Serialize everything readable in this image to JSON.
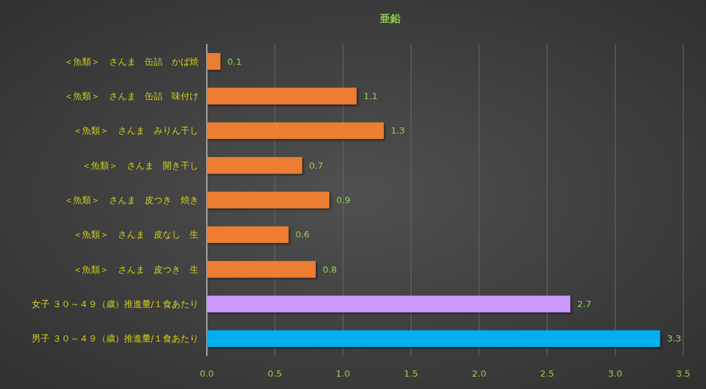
{
  "chart_data": {
    "type": "bar",
    "orientation": "horizontal",
    "title": "亜鉛",
    "categories": [
      "＜魚類＞　さんま　缶詰　かば焼",
      "＜魚類＞　さんま　缶詰　味付け",
      "＜魚類＞　さんま　みりん干し",
      "＜魚類＞　さんま　開き干し",
      "＜魚類＞　さんま　皮つき　焼き",
      "＜魚類＞　さんま　皮なし　生",
      "＜魚類＞　さんま　皮つき　生",
      "女子 ３０～４９（歳）推進量/１食あたり",
      "男子 ３０～４９（歳）推進量/１食あたり"
    ],
    "values": [
      0.1,
      1.1,
      1.3,
      0.7,
      0.9,
      0.6,
      0.8,
      2.67,
      3.33
    ],
    "value_labels": [
      "0.1",
      "1.1",
      "1.3",
      "0.7",
      "0.9",
      "0.6",
      "0.8",
      "2.7",
      "3.3"
    ],
    "colors": [
      "#ed7d31",
      "#ed7d31",
      "#ed7d31",
      "#ed7d31",
      "#ed7d31",
      "#ed7d31",
      "#ed7d31",
      "#cc99ff",
      "#00b0f0"
    ],
    "xlim": [
      0,
      3.5
    ],
    "xticks": [
      {
        "value": 0,
        "label": "0.0"
      },
      {
        "value": 0.5,
        "label": "0.5"
      },
      {
        "value": 1,
        "label": "1.0"
      },
      {
        "value": 1.5,
        "label": "1.5"
      },
      {
        "value": 2,
        "label": "2.0"
      },
      {
        "value": 2.5,
        "label": "2.5"
      },
      {
        "value": 3,
        "label": "3.0"
      },
      {
        "value": 3.5,
        "label": "3.5"
      }
    ],
    "grid": "x"
  }
}
